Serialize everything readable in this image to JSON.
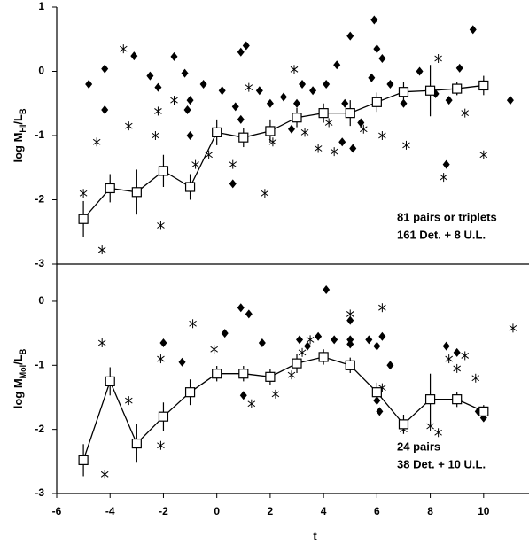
{
  "chart_data": [
    {
      "type": "scatter",
      "ylabel": [
        "log M",
        "HI",
        "/L",
        "B"
      ],
      "xlim": [
        -6,
        11.7
      ],
      "ylim": [
        -3,
        1
      ],
      "yticks": [
        1,
        0,
        -1,
        -2,
        -3
      ],
      "annotations": [
        "81 pairs or triplets",
        "161 Det. + 8 U.L."
      ],
      "series": [
        {
          "marker": "diamond",
          "color": "#000000",
          "x": [
            -4.8,
            -4.2,
            -4.2,
            -3.1,
            -2.5,
            -2.2,
            -1.6,
            -1.2,
            -1.0,
            -1.1,
            -1.0,
            -0.5,
            0.2,
            0.7,
            0.9,
            0.6,
            0.9,
            1.1,
            1.6,
            2.0,
            2.5,
            2.8,
            3.2,
            3.6,
            4.1,
            4.5,
            4.8,
            5.0,
            5.1,
            5.4,
            5.8,
            6.0,
            6.2,
            5.9,
            6.5,
            7.0,
            7.6,
            8.2,
            8.7,
            9.1,
            9.6,
            10.0,
            11.0,
            8.6,
            4.7,
            3.0
          ],
          "values": [
            -0.2,
            0.04,
            -0.6,
            0.24,
            -0.07,
            -0.25,
            0.23,
            -0.03,
            -0.45,
            -0.6,
            -1.0,
            -0.2,
            -0.3,
            -0.55,
            -0.75,
            -1.75,
            0.3,
            0.4,
            -0.3,
            -0.5,
            -0.4,
            -0.9,
            -0.2,
            -0.3,
            -0.2,
            0.1,
            -0.5,
            0.55,
            -1.2,
            -0.8,
            -0.1,
            0.35,
            0.2,
            0.8,
            -0.2,
            -0.5,
            0.0,
            -0.35,
            -0.45,
            0.05,
            0.65,
            -0.2,
            -0.45,
            -1.45,
            -1.1,
            -0.5
          ]
        },
        {
          "marker": "asterisk",
          "color": "#000000",
          "x": [
            -5,
            -4.5,
            -3.3,
            -2.3,
            -2.1,
            -2.2,
            -1.6,
            -3.5,
            -4.3,
            -0.8,
            -0.3,
            0.6,
            1.2,
            1.8,
            2.1,
            2.9,
            3.3,
            3.8,
            4.2,
            4.4,
            5.5,
            6.2,
            7.1,
            8.3,
            9.0,
            9.3,
            10.0,
            8.5
          ],
          "values": [
            -1.9,
            -1.1,
            -0.85,
            -1.0,
            -2.4,
            -0.62,
            -0.45,
            0.35,
            -2.78,
            -1.45,
            -1.3,
            -1.45,
            -0.25,
            -1.9,
            -1.1,
            0.03,
            -0.95,
            -1.2,
            -0.8,
            -1.25,
            -0.9,
            -1.0,
            -1.15,
            0.2,
            -0.3,
            -0.65,
            -1.3,
            -1.65
          ]
        },
        {
          "marker": "square",
          "color": "#000000",
          "line": true,
          "x": [
            -5,
            -4,
            -3,
            -2,
            -1,
            0,
            1,
            2,
            3,
            4,
            5,
            6,
            7,
            8,
            9,
            10
          ],
          "values": [
            -2.3,
            -1.82,
            -1.88,
            -1.55,
            -1.8,
            -0.95,
            -1.03,
            -0.93,
            -0.72,
            -0.65,
            -0.65,
            -0.48,
            -0.32,
            -0.3,
            -0.27,
            -0.22
          ],
          "errors": [
            0.28,
            0.22,
            0.35,
            0.25,
            0.2,
            0.2,
            0.15,
            0.18,
            0.15,
            0.15,
            0.2,
            0.15,
            0.15,
            0.4,
            0.1,
            0.15
          ]
        }
      ]
    },
    {
      "type": "scatter",
      "ylabel": [
        "log M",
        "Mol",
        "/L",
        "B"
      ],
      "xlabel": "t",
      "xlim": [
        -6,
        11.7
      ],
      "ylim": [
        -3,
        0.58
      ],
      "yticks": [
        0,
        -1,
        -2,
        -3
      ],
      "xticks": [
        -6,
        -4,
        -2,
        0,
        2,
        4,
        6,
        8,
        10
      ],
      "annotations": [
        "24 pairs",
        "38 Det. + 10 U.L."
      ],
      "series": [
        {
          "marker": "diamond",
          "color": "#000000",
          "x": [
            0.9,
            1.2,
            1.0,
            0.3,
            3.1,
            3.4,
            3.8,
            4.1,
            4.4,
            5.0,
            5.0,
            5.0,
            5.7,
            6.0,
            6.2,
            6.0,
            6.1,
            6.5,
            8.6,
            9.0,
            9.8,
            10.0,
            1.7,
            -1.3,
            -2.0
          ],
          "values": [
            -0.1,
            -0.2,
            -1.47,
            -0.5,
            -0.6,
            -0.7,
            -0.55,
            0.18,
            -0.6,
            -0.3,
            -0.6,
            -0.67,
            -0.6,
            -0.7,
            -0.55,
            -1.55,
            -1.72,
            -1.0,
            -0.7,
            -0.8,
            -1.72,
            -1.82,
            -0.65,
            -0.95,
            -0.65
          ]
        },
        {
          "marker": "asterisk",
          "color": "#000000",
          "x": [
            -4.3,
            -3.3,
            -2.1,
            -2.1,
            -0.9,
            -0.1,
            1.3,
            2.2,
            2.8,
            3.2,
            3.5,
            5.0,
            6.2,
            6.2,
            7.0,
            8.0,
            8.7,
            9.0,
            9.3,
            9.7,
            11.1,
            -4.2,
            8.3
          ],
          "values": [
            -0.65,
            -1.55,
            -2.25,
            -0.9,
            -0.35,
            -0.75,
            -1.6,
            -1.45,
            -1.15,
            -0.8,
            -0.6,
            -0.2,
            -0.1,
            -1.35,
            -2.0,
            -1.95,
            -0.9,
            -1.05,
            -0.85,
            -1.2,
            -0.42,
            -2.7,
            -2.05
          ]
        },
        {
          "marker": "square",
          "color": "#000000",
          "line": true,
          "x": [
            -5,
            -4,
            -3,
            -2,
            -1,
            0,
            1,
            2,
            3,
            4,
            5,
            6,
            7,
            8,
            9,
            10
          ],
          "values": [
            -2.48,
            -1.25,
            -2.22,
            -1.8,
            -1.42,
            -1.13,
            -1.13,
            -1.18,
            -0.97,
            -0.87,
            -1.0,
            -1.42,
            -1.92,
            -1.53,
            -1.53,
            -1.72
          ],
          "errors": [
            0.25,
            0.22,
            0.3,
            0.22,
            0.2,
            0.12,
            0.12,
            0.12,
            0.15,
            0.12,
            0.12,
            0.15,
            0.15,
            0.4,
            0.12,
            0.1
          ]
        }
      ]
    }
  ]
}
